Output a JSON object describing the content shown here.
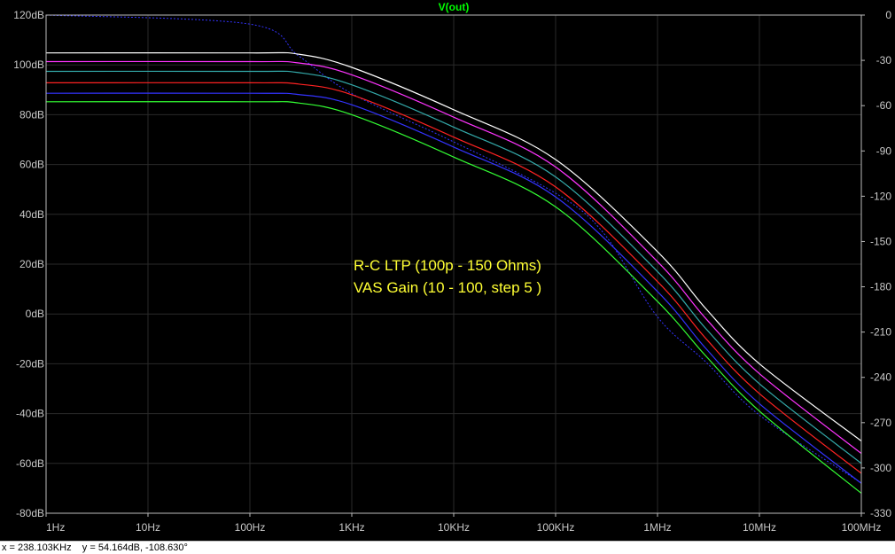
{
  "chart_data": {
    "type": "line",
    "title": "V(out)",
    "x_scale": "log",
    "x_ticks": [
      "1Hz",
      "10Hz",
      "100Hz",
      "1KHz",
      "10KHz",
      "100KHz",
      "1MHz",
      "10MHz",
      "100MHz"
    ],
    "y_left_ticks": [
      "120dB",
      "100dB",
      "80dB",
      "60dB",
      "40dB",
      "20dB",
      "0dB",
      "-20dB",
      "-40dB",
      "-60dB",
      "-80dB"
    ],
    "y_right_ticks": [
      "0",
      "-30",
      "-60",
      "-90",
      "-120",
      "-150",
      "-180",
      "-210",
      "-240",
      "-270",
      "-300",
      "-330"
    ],
    "xlim": [
      1,
      100000000
    ],
    "ylim": [
      -80,
      120
    ],
    "y2lim": [
      -330,
      0
    ],
    "annotations": [
      "R-C LTP (100p - 150 Ohms)",
      "VAS Gain (10 - 100, step 5 )"
    ],
    "series": [
      {
        "color": "#ffffff",
        "points": [
          [
            1,
            104.8
          ],
          [
            100,
            104.8
          ],
          [
            300,
            104.3
          ],
          [
            1000,
            99
          ],
          [
            10000,
            82
          ],
          [
            100000,
            62
          ],
          [
            1000000,
            25
          ],
          [
            3000000,
            2
          ],
          [
            10000000,
            -20
          ],
          [
            100000000,
            -51
          ]
        ]
      },
      {
        "color": "#ff33ff",
        "points": [
          [
            1,
            101.3
          ],
          [
            100,
            101.3
          ],
          [
            300,
            100.8
          ],
          [
            1000,
            96
          ],
          [
            10000,
            79
          ],
          [
            100000,
            59
          ],
          [
            1000000,
            21
          ],
          [
            3000000,
            -2
          ],
          [
            10000000,
            -24
          ],
          [
            100000000,
            -56
          ]
        ]
      },
      {
        "color": "#33aaaa",
        "points": [
          [
            1,
            97.4
          ],
          [
            100,
            97.4
          ],
          [
            300,
            96.9
          ],
          [
            1000,
            92
          ],
          [
            10000,
            75
          ],
          [
            100000,
            55
          ],
          [
            1000000,
            17
          ],
          [
            3000000,
            -6
          ],
          [
            10000000,
            -28
          ],
          [
            100000000,
            -60
          ]
        ]
      },
      {
        "color": "#ff2222",
        "points": [
          [
            1,
            92.8
          ],
          [
            100,
            92.8
          ],
          [
            300,
            92.3
          ],
          [
            1000,
            88
          ],
          [
            10000,
            71
          ],
          [
            100000,
            51
          ],
          [
            1000000,
            13
          ],
          [
            3000000,
            -10
          ],
          [
            10000000,
            -32
          ],
          [
            100000000,
            -64
          ]
        ]
      },
      {
        "color": "#3333ff",
        "points": [
          [
            1,
            88.6
          ],
          [
            100,
            88.6
          ],
          [
            300,
            88.1
          ],
          [
            1000,
            84
          ],
          [
            10000,
            67
          ],
          [
            100000,
            47
          ],
          [
            1000000,
            9
          ],
          [
            3000000,
            -14
          ],
          [
            10000000,
            -36
          ],
          [
            100000000,
            -68
          ]
        ]
      },
      {
        "color": "#33ff33",
        "points": [
          [
            1,
            85.2
          ],
          [
            100,
            85.2
          ],
          [
            300,
            84.7
          ],
          [
            1000,
            80
          ],
          [
            10000,
            63
          ],
          [
            100000,
            43
          ],
          [
            1000000,
            5
          ],
          [
            3000000,
            -17
          ],
          [
            10000000,
            -39
          ],
          [
            100000000,
            -72
          ]
        ]
      }
    ],
    "phase_trace": {
      "color": "#3333ff",
      "dashed": true,
      "points": [
        [
          1,
          0
        ],
        [
          100,
          -6
        ],
        [
          300,
          -27
        ],
        [
          1000,
          -52
        ],
        [
          10000,
          -84
        ],
        [
          100000,
          -118
        ],
        [
          300000,
          -145
        ],
        [
          1000000,
          -200
        ],
        [
          3000000,
          -230
        ],
        [
          10000000,
          -265
        ],
        [
          100000000,
          -310
        ]
      ]
    }
  },
  "status_bar": {
    "text": "x = 238.103KHz    y = 54.164dB, -108.630°"
  }
}
